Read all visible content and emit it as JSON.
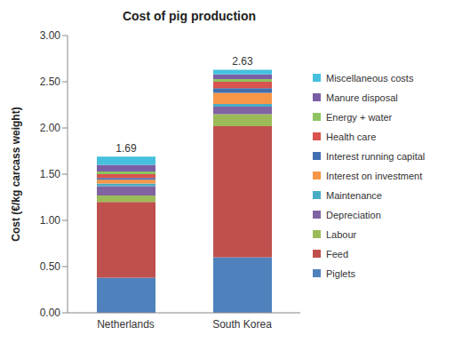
{
  "chart_data": {
    "type": "bar",
    "title": "Cost of pig production",
    "y_label": "Cost (€/kg carcass weight)",
    "categories": [
      "Netherlands",
      "South Korea"
    ],
    "stacked": true,
    "totals": [
      1.69,
      2.63
    ],
    "ylim": [
      0,
      3
    ],
    "yticks": [
      {
        "value": 0,
        "label": "0.00"
      },
      {
        "value": 0.5,
        "label": "0.50"
      },
      {
        "value": 1,
        "label": "1.00"
      },
      {
        "value": 1.5,
        "label": "1.50"
      },
      {
        "value": 2,
        "label": "2.00"
      },
      {
        "value": 2.5,
        "label": "2.50"
      },
      {
        "value": 3,
        "label": "3.00"
      }
    ],
    "grid": false,
    "legend": "right",
    "series": [
      {
        "name": "Piglets",
        "color": "#4f81bd",
        "values": [
          0.38,
          0.6
        ]
      },
      {
        "name": "Feed",
        "color": "#c0504d",
        "values": [
          0.82,
          1.42
        ]
      },
      {
        "name": "Labour",
        "color": "#9bbb59",
        "values": [
          0.07,
          0.13
        ]
      },
      {
        "name": "Depreciation",
        "color": "#8064a2",
        "values": [
          0.1,
          0.08
        ]
      },
      {
        "name": "Maintenance",
        "color": "#4bacc6",
        "values": [
          0.03,
          0.03
        ]
      },
      {
        "name": "Interest on investment",
        "color": "#f79646",
        "values": [
          0.04,
          0.12
        ]
      },
      {
        "name": "Interest running capital",
        "color": "#3f6fb0",
        "values": [
          0.02,
          0.05
        ]
      },
      {
        "name": "Health care",
        "color": "#d9534f",
        "values": [
          0.04,
          0.07
        ]
      },
      {
        "name": "Energy + water",
        "color": "#8fc460",
        "values": [
          0.03,
          0.03
        ]
      },
      {
        "name": "Manure disposal",
        "color": "#7b5fa6",
        "values": [
          0.07,
          0.05
        ]
      },
      {
        "name": "Miscellaneous costs",
        "color": "#46c0dc",
        "values": [
          0.09,
          0.05
        ]
      }
    ]
  }
}
